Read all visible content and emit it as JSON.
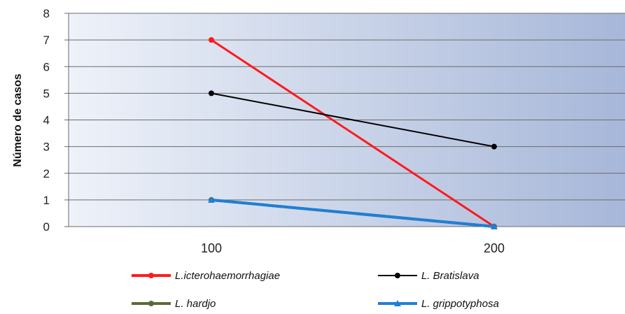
{
  "chart_data": {
    "type": "line",
    "title": "",
    "xlabel": "",
    "ylabel": "Número de casos",
    "categories": [
      "100",
      "200"
    ],
    "ylim": [
      0,
      8
    ],
    "yticks": [
      "0",
      "1",
      "2",
      "3",
      "4",
      "5",
      "6",
      "7",
      "8"
    ],
    "grid": true,
    "legend_position": "bottom",
    "series": [
      {
        "name": "L.icterohaemorrhagiae",
        "values": [
          7,
          0
        ],
        "color": "#ff1a1a",
        "marker": "circle"
      },
      {
        "name": "L. Bratislava",
        "values": [
          5,
          3
        ],
        "color": "#000000",
        "marker": "circle"
      },
      {
        "name": "L. hardjo",
        "values": [
          1,
          0
        ],
        "color": "#5a6b3a",
        "marker": "circle"
      },
      {
        "name": "L. grippotyphosa",
        "values": [
          1,
          0
        ],
        "color": "#1f7fd6",
        "marker": "triangle"
      }
    ]
  }
}
